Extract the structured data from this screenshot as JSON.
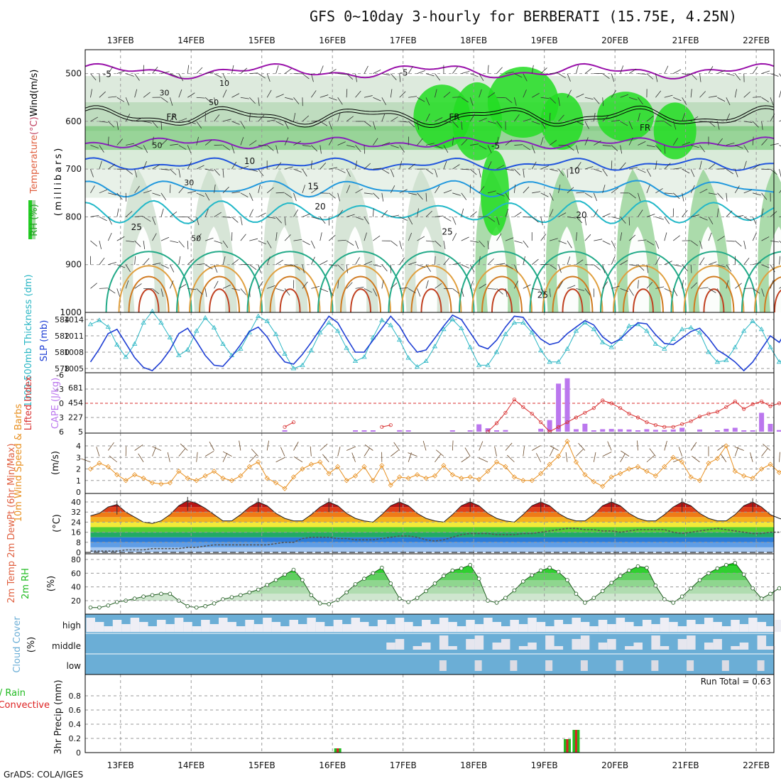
{
  "title": "GFS 0~10day 3-hourly for BERBERATI (15.75E, 4.25N)",
  "footer": "GrADS: COLA/IGES",
  "days": [
    "13FEB",
    "14FEB",
    "15FEB",
    "16FEB",
    "17FEB",
    "18FEB",
    "19FEB",
    "20FEB",
    "21FEB",
    "22FEB"
  ],
  "colors": {
    "temp_label": "#e06040",
    "wind_label": "#000000",
    "rh_label": "#1fa31f",
    "thickness": "#2ab6c4",
    "slp": "#1f3fd4",
    "lifted_index": "#d83030",
    "cape": "#bb77ee",
    "wind10": "#e89020",
    "barb": "#6b4a2a",
    "rh2m": "#22bb22",
    "cloud": "#6baed6",
    "precip_total": "#22bb22",
    "precip_conv": "#dd2222"
  },
  "chart_data": [
    {
      "type": "heatmap",
      "panel": "upper-air",
      "ylabel_parts": [
        "RH (%)",
        "Temperature",
        "(°C)",
        "Wind",
        "(m/s)"
      ],
      "yunit": "(millibars)",
      "y_ticks": [
        500,
        600,
        700,
        800,
        900,
        1000
      ],
      "ylim": [
        450,
        1000
      ],
      "isotherm_labels": [
        {
          "text": "-5",
          "day": 12.8,
          "p": 500
        },
        {
          "text": "-5",
          "day": 17.0,
          "p": 497
        },
        {
          "text": "FR",
          "day": 13.7,
          "p": 590
        },
        {
          "text": "FR",
          "day": 17.7,
          "p": 590
        },
        {
          "text": "FR",
          "day": 20.4,
          "p": 612
        },
        {
          "text": "-5",
          "day": 18.3,
          "p": 650
        },
        {
          "text": "10",
          "day": 14.8,
          "p": 682
        },
        {
          "text": "10",
          "day": 19.4,
          "p": 702
        },
        {
          "text": "15",
          "day": 15.7,
          "p": 735
        },
        {
          "text": "20",
          "day": 15.8,
          "p": 777
        },
        {
          "text": "20",
          "day": 19.5,
          "p": 795
        },
        {
          "text": "25",
          "day": 13.2,
          "p": 820
        },
        {
          "text": "25",
          "day": 17.6,
          "p": 830
        },
        {
          "text": "25",
          "day": 18.95,
          "p": 962
        }
      ],
      "rh_labels": [
        {
          "text": "30",
          "day": 13.6,
          "p": 540
        },
        {
          "text": "10",
          "day": 14.45,
          "p": 520
        },
        {
          "text": "50",
          "day": 14.3,
          "p": 560
        },
        {
          "text": "50",
          "day": 13.5,
          "p": 650
        },
        {
          "text": "30",
          "day": 13.95,
          "p": 728
        },
        {
          "text": "50",
          "day": 14.05,
          "p": 845
        }
      ]
    },
    {
      "type": "line",
      "panel": "slp-thickness",
      "ylabel": "1000-500mb Thickness (dm)",
      "ylabel2": "SLP (mb)",
      "y_ticks_left": [
        578,
        580,
        582,
        584
      ],
      "y_ticks_right": [
        1005,
        1008,
        1011,
        1014
      ],
      "series": [
        {
          "name": "Thickness",
          "values": [
            583.4,
            583.9,
            583.1,
            580.9,
            579.4,
            581.0,
            583.6,
            585.0,
            583.6,
            581.8,
            579.6,
            580.3,
            582.6,
            584.2,
            583.0,
            581.0,
            579.6,
            580.4,
            582.4,
            584.4,
            583.8,
            582.2,
            579.8,
            578.0,
            578.4,
            580.2,
            582.4,
            583.6,
            582.6,
            580.5,
            578.9,
            579.4,
            581.8,
            583.9,
            583.3,
            581.5,
            579.3,
            578.2,
            578.9,
            580.7,
            582.8,
            584.0,
            582.9,
            580.6,
            578.4,
            578.4,
            580.0,
            582.2,
            583.6,
            583.6,
            582.4,
            580.2,
            578.8,
            578.8,
            580.4,
            582.6,
            583.6,
            582.8,
            581.2,
            580.6,
            581.6,
            583.2,
            583.4,
            582.6,
            581.0,
            580.4,
            581.6,
            582.8,
            583.0,
            582.4,
            580.0,
            578.8,
            579.0,
            580.6,
            582.6,
            583.8,
            582.8,
            580.6,
            578.8,
            579.4
          ]
        },
        {
          "name": "SLP",
          "values": [
            1006.2,
            1008.6,
            1011.4,
            1012.2,
            1009.6,
            1007.0,
            1005.2,
            1004.6,
            1006.2,
            1008.4,
            1011.4,
            1012.4,
            1010.0,
            1007.4,
            1005.6,
            1005.4,
            1007.2,
            1009.4,
            1011.8,
            1012.6,
            1010.8,
            1008.2,
            1006.2,
            1005.8,
            1007.6,
            1009.8,
            1012.2,
            1014.6,
            1013.4,
            1010.6,
            1008.0,
            1008.0,
            1010.2,
            1012.4,
            1014.6,
            1012.8,
            1010.0,
            1008.0,
            1008.4,
            1010.6,
            1012.8,
            1014.8,
            1014.0,
            1011.6,
            1009.2,
            1008.6,
            1010.2,
            1012.6,
            1014.6,
            1014.4,
            1012.2,
            1010.4,
            1009.4,
            1009.8,
            1011.4,
            1012.6,
            1013.8,
            1013.0,
            1010.8,
            1009.6,
            1010.4,
            1012.0,
            1013.4,
            1013.2,
            1011.2,
            1009.6,
            1009.4,
            1010.6,
            1011.8,
            1012.4,
            1010.6,
            1008.4,
            1007.4,
            1006.2,
            1004.6,
            1006.2,
            1008.6,
            1011.0,
            1009.8,
            1012.4
          ]
        }
      ]
    },
    {
      "type": "bar",
      "panel": "cape-li",
      "ylabel": "Lifted Index",
      "ylabel2": "CAPE (J/kg)",
      "y_ticks_left": [
        6,
        3,
        0,
        -3,
        -6
      ],
      "y_ticks_right": [
        5,
        227,
        454,
        681
      ],
      "series": [
        {
          "name": "CAPE",
          "values": [
            0,
            0,
            0,
            0,
            0,
            0,
            0,
            0,
            0,
            0,
            0,
            0,
            0,
            0,
            0,
            0,
            0,
            0,
            0,
            0,
            0,
            0,
            23,
            0,
            0,
            0,
            0,
            0,
            0,
            0,
            8,
            15,
            17,
            0,
            0,
            23,
            8,
            0,
            0,
            0,
            0,
            22,
            0,
            5,
            113,
            53,
            10,
            25,
            0,
            0,
            0,
            45,
            178,
            738,
            820,
            38,
            122,
            5,
            38,
            42,
            38,
            33,
            8,
            38,
            28,
            25,
            33,
            60,
            0,
            33,
            0,
            10,
            45,
            60,
            15,
            20,
            290,
            120,
            25,
            20
          ]
        },
        {
          "name": "Lifted Index",
          "values": [
            null,
            null,
            null,
            null,
            null,
            null,
            null,
            null,
            null,
            null,
            null,
            null,
            null,
            null,
            null,
            null,
            null,
            null,
            null,
            null,
            null,
            null,
            5.0,
            4.0,
            null,
            null,
            null,
            null,
            null,
            null,
            null,
            null,
            null,
            5.0,
            4.6,
            null,
            null,
            null,
            null,
            null,
            null,
            null,
            null,
            null,
            null,
            6.0,
            4.2,
            2.0,
            -0.8,
            0.8,
            2.2,
            4.0,
            6.0,
            5.0,
            4.0,
            3.0,
            2.0,
            1.0,
            -0.6,
            0.0,
            1.0,
            2.2,
            3.0,
            4.0,
            4.6,
            5.0,
            5.0,
            4.4,
            3.8,
            2.8,
            2.2,
            1.8,
            0.8,
            -0.4,
            1.2,
            0.2,
            -0.4,
            0.6,
            0.0,
            0.0
          ]
        }
      ]
    },
    {
      "type": "line",
      "panel": "wind10m",
      "ylabel": "10m Wind Speed & Barbs",
      "yunit": "(m/s)",
      "y_ticks": [
        0,
        1,
        2,
        3,
        4
      ],
      "series": [
        {
          "name": "10m Wind Speed",
          "values": [
            2.0,
            2.5,
            2.2,
            1.5,
            1.0,
            1.5,
            1.2,
            0.8,
            0.7,
            0.8,
            1.8,
            1.2,
            1.0,
            1.4,
            1.8,
            1.2,
            1.0,
            1.4,
            2.2,
            2.6,
            1.2,
            0.8,
            0.3,
            1.3,
            2.0,
            2.4,
            2.6,
            1.6,
            2.2,
            1.0,
            1.4,
            2.2,
            1.0,
            2.3,
            0.6,
            1.3,
            1.2,
            1.5,
            1.2,
            1.4,
            2.3,
            1.5,
            1.2,
            1.3,
            1.1,
            1.8,
            2.6,
            2.2,
            1.3,
            1.0,
            1.0,
            1.6,
            2.4,
            3.1,
            4.4,
            2.6,
            1.5,
            0.9,
            0.5,
            1.3,
            1.6,
            2.0,
            2.2,
            1.8,
            1.4,
            2.2,
            3.0,
            2.6,
            1.3,
            1.0,
            2.5,
            2.9,
            4.0,
            1.8,
            1.4,
            1.2,
            2.0,
            2.4,
            1.7,
            2.2
          ]
        }
      ]
    },
    {
      "type": "area",
      "panel": "temp2m",
      "ylabel": "2m Temp 2m DewPt (6hr Min/Max)",
      "yunit": "(°C)",
      "y_ticks": [
        0,
        8,
        16,
        24,
        32,
        40
      ],
      "series": [
        {
          "name": "2m Temp",
          "values": [
            29,
            31,
            36,
            38,
            32,
            28,
            24,
            23,
            25,
            30,
            37,
            41,
            39,
            35,
            30,
            25,
            25,
            30,
            36,
            40,
            37,
            31,
            27,
            25,
            25,
            30,
            36,
            40,
            37,
            31,
            27,
            25,
            24,
            30,
            37,
            40,
            37,
            31,
            27,
            25,
            24,
            30,
            37,
            40,
            37,
            31,
            27,
            25,
            24,
            30,
            37,
            40,
            37,
            31,
            27,
            25,
            25,
            30,
            37,
            40,
            37,
            31,
            27,
            25,
            25,
            30,
            36,
            40,
            37,
            31,
            27,
            25,
            25,
            30,
            37,
            40,
            36,
            30,
            27,
            25
          ]
        },
        {
          "name": "2m DewPt",
          "values": [
            1,
            1,
            1,
            1,
            2,
            2,
            2,
            3,
            3,
            3,
            3,
            4,
            4,
            5,
            6,
            6,
            6,
            6,
            6,
            6,
            6,
            7,
            8,
            8,
            11,
            12,
            12,
            12,
            11,
            11,
            10,
            10,
            10,
            11,
            12,
            13,
            13,
            12,
            10,
            9,
            10,
            12,
            14,
            15,
            15,
            15,
            14,
            14,
            14,
            15,
            15,
            16,
            17,
            18,
            19,
            19,
            18,
            18,
            17,
            17,
            16,
            17,
            18,
            18,
            18,
            18,
            16,
            15,
            16,
            17,
            18,
            19,
            18,
            17,
            16,
            15,
            15,
            16,
            16,
            17
          ]
        }
      ]
    },
    {
      "type": "area",
      "panel": "rh2m",
      "ylabel": "2m RH",
      "yunit": "(%)",
      "y_ticks": [
        20,
        40,
        60,
        80
      ],
      "series": [
        {
          "name": "2m RH",
          "values": [
            10,
            10,
            13,
            18,
            20,
            23,
            26,
            28,
            30,
            30,
            20,
            12,
            10,
            12,
            16,
            22,
            25,
            28,
            32,
            36,
            43,
            50,
            58,
            65,
            50,
            28,
            16,
            15,
            21,
            32,
            44,
            52,
            60,
            68,
            45,
            23,
            18,
            24,
            34,
            45,
            56,
            64,
            67,
            72,
            52,
            20,
            17,
            24,
            35,
            48,
            57,
            64,
            68,
            62,
            50,
            30,
            17,
            24,
            34,
            46,
            56,
            64,
            70,
            68,
            42,
            22,
            17,
            26,
            38,
            50,
            60,
            67,
            72,
            75,
            58,
            38,
            23,
            30,
            38,
            46
          ]
        }
      ]
    },
    {
      "type": "heatmap",
      "panel": "cloud",
      "ylabel": "Cloud Cover",
      "yunit": "(%)",
      "levels": [
        "high",
        "middle",
        "low"
      ]
    },
    {
      "type": "bar",
      "panel": "precip",
      "ylabel": "Total / Rain Convective",
      "ylabel_unit": "3hr Precip (mm)",
      "run_total": "Run Total = 0.63",
      "y_ticks": [
        0,
        0.2,
        0.4,
        0.6,
        0.8
      ],
      "ylim": [
        0,
        0.95
      ],
      "series": [
        {
          "name": "Total",
          "values": [
            0,
            0,
            0,
            0,
            0,
            0,
            0,
            0,
            0,
            0,
            0,
            0,
            0,
            0,
            0,
            0,
            0,
            0,
            0,
            0,
            0,
            0,
            0,
            0,
            0,
            0,
            0,
            0,
            0.06,
            0,
            0,
            0,
            0,
            0,
            0,
            0,
            0,
            0,
            0,
            0,
            0,
            0,
            0,
            0,
            0,
            0,
            0,
            0,
            0,
            0,
            0,
            0,
            0,
            0,
            0.19,
            0.32,
            0,
            0,
            0,
            0,
            0,
            0,
            0,
            0,
            0,
            0,
            0,
            0,
            0,
            0,
            0,
            0,
            0,
            0,
            0,
            0,
            0,
            0,
            0,
            0.06
          ]
        },
        {
          "name": "Convective",
          "values": [
            0,
            0,
            0,
            0,
            0,
            0,
            0,
            0,
            0,
            0,
            0,
            0,
            0,
            0,
            0,
            0,
            0,
            0,
            0,
            0,
            0,
            0,
            0,
            0,
            0,
            0,
            0,
            0,
            0.06,
            0,
            0,
            0,
            0,
            0,
            0,
            0,
            0,
            0,
            0,
            0,
            0,
            0,
            0,
            0,
            0,
            0,
            0,
            0,
            0,
            0,
            0,
            0,
            0,
            0,
            0.19,
            0.32,
            0,
            0,
            0,
            0,
            0,
            0,
            0,
            0,
            0,
            0,
            0,
            0,
            0,
            0,
            0,
            0,
            0,
            0,
            0,
            0,
            0,
            0,
            0,
            0.02
          ]
        }
      ]
    }
  ]
}
